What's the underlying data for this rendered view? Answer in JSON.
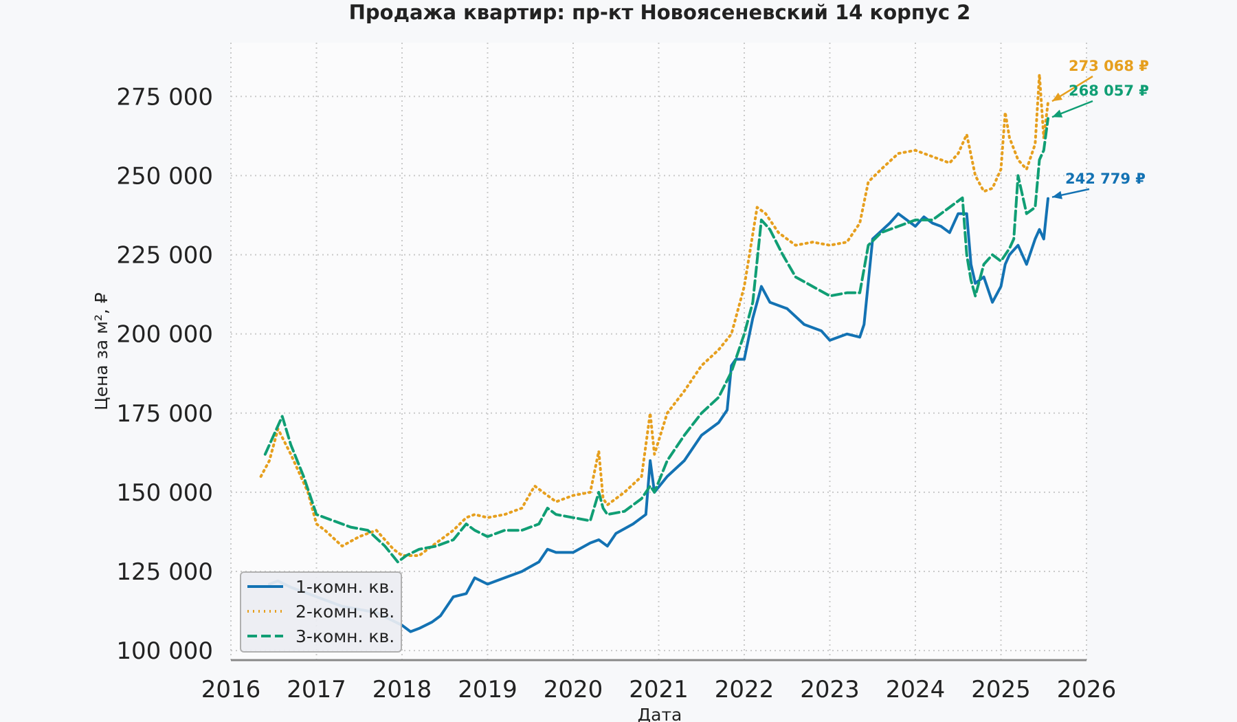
{
  "chart_data": {
    "type": "line",
    "title": "Продажа квартир: пр-кт Новоясеневский 14 корпус 2",
    "xlabel": "Дата",
    "ylabel": "Цена за м², ₽",
    "xlim": [
      2016.0,
      2026.0
    ],
    "ylim": [
      97000,
      292000
    ],
    "x_ticks": [
      2016,
      2017,
      2018,
      2019,
      2020,
      2021,
      2022,
      2023,
      2024,
      2025,
      2026
    ],
    "x_tick_labels": [
      "2016",
      "2017",
      "2018",
      "2019",
      "2020",
      "2021",
      "2022",
      "2023",
      "2024",
      "2025",
      "2026"
    ],
    "y_ticks": [
      100000,
      125000,
      150000,
      175000,
      200000,
      225000,
      250000,
      275000
    ],
    "y_tick_labels": [
      "100 000",
      "125 000",
      "150 000",
      "175 000",
      "200 000",
      "225 000",
      "250 000",
      "275 000"
    ],
    "grid": true,
    "legend_position": "lower-left",
    "series": [
      {
        "name": "1-комн. кв.",
        "color": "#1372b3",
        "style": "solid",
        "x": [
          2016.45,
          2016.55,
          2016.7,
          2016.9,
          2017.1,
          2017.3,
          2017.5,
          2017.7,
          2017.85,
          2018.0,
          2018.1,
          2018.2,
          2018.35,
          2018.45,
          2018.6,
          2018.75,
          2018.85,
          2019.0,
          2019.2,
          2019.4,
          2019.6,
          2019.7,
          2019.8,
          2020.0,
          2020.2,
          2020.3,
          2020.4,
          2020.5,
          2020.7,
          2020.85,
          2020.9,
          2020.95,
          2021.1,
          2021.3,
          2021.5,
          2021.7,
          2021.8,
          2021.85,
          2021.9,
          2022.0,
          2022.1,
          2022.2,
          2022.3,
          2022.5,
          2022.7,
          2022.9,
          2023.0,
          2023.2,
          2023.35,
          2023.4,
          2023.5,
          2023.7,
          2023.8,
          2024.0,
          2024.1,
          2024.2,
          2024.3,
          2024.4,
          2024.5,
          2024.6,
          2024.65,
          2024.7,
          2024.8,
          2024.9,
          2025.0,
          2025.05,
          2025.1,
          2025.2,
          2025.3,
          2025.4,
          2025.45,
          2025.5,
          2025.55
        ],
        "values": [
          121000,
          122000,
          120000,
          118000,
          116000,
          114000,
          113000,
          112000,
          110000,
          108000,
          106000,
          107000,
          109000,
          111000,
          117000,
          118000,
          123000,
          121000,
          123000,
          125000,
          128000,
          132000,
          131000,
          131000,
          134000,
          135000,
          133000,
          137000,
          140000,
          143000,
          160000,
          150000,
          155000,
          160000,
          168000,
          172000,
          176000,
          190000,
          192000,
          192000,
          205000,
          215000,
          210000,
          208000,
          203000,
          201000,
          198000,
          200000,
          199000,
          203000,
          230000,
          235000,
          238000,
          234000,
          237000,
          235000,
          234000,
          232000,
          238000,
          238000,
          222000,
          216000,
          218000,
          210000,
          215000,
          222000,
          225000,
          228000,
          222000,
          230000,
          233000,
          230000,
          242779
        ]
      },
      {
        "name": "2-комн. кв.",
        "color": "#e69f1e",
        "style": "dotted",
        "x": [
          2016.35,
          2016.45,
          2016.55,
          2016.7,
          2016.9,
          2017.0,
          2017.1,
          2017.3,
          2017.5,
          2017.7,
          2017.9,
          2018.0,
          2018.2,
          2018.4,
          2018.6,
          2018.75,
          2018.85,
          2019.0,
          2019.2,
          2019.4,
          2019.55,
          2019.65,
          2019.8,
          2020.0,
          2020.2,
          2020.3,
          2020.35,
          2020.4,
          2020.6,
          2020.8,
          2020.9,
          2020.95,
          2021.1,
          2021.3,
          2021.5,
          2021.7,
          2021.85,
          2022.0,
          2022.15,
          2022.25,
          2022.4,
          2022.6,
          2022.8,
          2023.0,
          2023.2,
          2023.35,
          2023.45,
          2023.6,
          2023.8,
          2024.0,
          2024.2,
          2024.4,
          2024.5,
          2024.6,
          2024.7,
          2024.8,
          2024.9,
          2025.0,
          2025.05,
          2025.1,
          2025.2,
          2025.3,
          2025.4,
          2025.45,
          2025.5,
          2025.55
        ],
        "values": [
          155000,
          160000,
          170000,
          162000,
          150000,
          140000,
          138000,
          133000,
          136000,
          138000,
          132000,
          130000,
          130000,
          134000,
          138000,
          142000,
          143000,
          142000,
          143000,
          145000,
          152000,
          150000,
          147000,
          149000,
          150000,
          163000,
          148000,
          146000,
          150000,
          155000,
          175000,
          162000,
          175000,
          182000,
          190000,
          195000,
          200000,
          215000,
          240000,
          238000,
          232000,
          228000,
          229000,
          228000,
          229000,
          235000,
          248000,
          252000,
          257000,
          258000,
          256000,
          254000,
          257000,
          263000,
          250000,
          245000,
          246000,
          252000,
          270000,
          262000,
          255000,
          252000,
          260000,
          282000,
          262000,
          273068
        ]
      },
      {
        "name": "3-комн. кв.",
        "color": "#109e74",
        "style": "dashed",
        "x": [
          2016.4,
          2016.5,
          2016.6,
          2016.7,
          2016.85,
          2017.0,
          2017.2,
          2017.4,
          2017.6,
          2017.8,
          2017.95,
          2018.05,
          2018.2,
          2018.4,
          2018.6,
          2018.75,
          2018.85,
          2019.0,
          2019.2,
          2019.4,
          2019.6,
          2019.7,
          2019.8,
          2020.0,
          2020.2,
          2020.3,
          2020.35,
          2020.4,
          2020.6,
          2020.8,
          2020.9,
          2020.95,
          2021.1,
          2021.3,
          2021.5,
          2021.7,
          2021.85,
          2022.0,
          2022.1,
          2022.2,
          2022.3,
          2022.45,
          2022.6,
          2022.8,
          2023.0,
          2023.2,
          2023.35,
          2023.45,
          2023.6,
          2023.8,
          2024.0,
          2024.2,
          2024.4,
          2024.55,
          2024.6,
          2024.65,
          2024.7,
          2024.8,
          2024.9,
          2025.0,
          2025.1,
          2025.15,
          2025.2,
          2025.3,
          2025.4,
          2025.45,
          2025.5,
          2025.55
        ],
        "values": [
          162000,
          168000,
          174000,
          165000,
          155000,
          143000,
          141000,
          139000,
          138000,
          133000,
          128000,
          130000,
          132000,
          133000,
          135000,
          140000,
          138000,
          136000,
          138000,
          138000,
          140000,
          145000,
          143000,
          142000,
          141000,
          150000,
          145000,
          143000,
          144000,
          148000,
          152000,
          150000,
          160000,
          168000,
          175000,
          180000,
          188000,
          200000,
          210000,
          236000,
          233000,
          225000,
          218000,
          215000,
          212000,
          213000,
          213000,
          228000,
          232000,
          234000,
          236000,
          236000,
          240000,
          243000,
          225000,
          217000,
          212000,
          222000,
          225000,
          223000,
          227000,
          230000,
          250000,
          238000,
          240000,
          255000,
          258000,
          268057
        ]
      }
    ],
    "annotations": [
      {
        "series": "2-комн. кв.",
        "text": "273 068 ₽",
        "x": 2025.55,
        "y": 273068,
        "color": "#e69f1e"
      },
      {
        "series": "3-комн. кв.",
        "text": "268 057 ₽",
        "x": 2025.55,
        "y": 268057,
        "color": "#109e74"
      },
      {
        "series": "1-комн. кв.",
        "text": "242 779 ₽",
        "x": 2025.55,
        "y": 242779,
        "color": "#1372b3"
      }
    ]
  }
}
